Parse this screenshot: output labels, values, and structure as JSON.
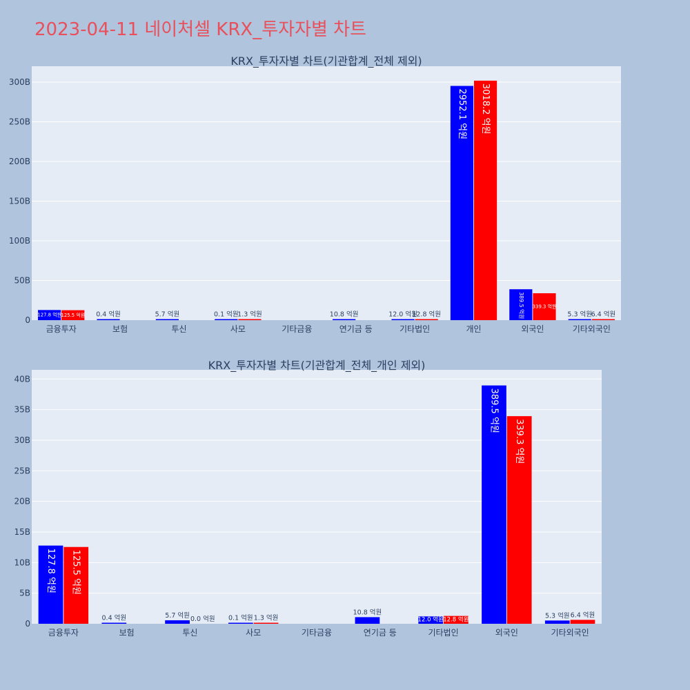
{
  "page": {
    "title": "2023-04-11 네이처셀 KRX_투자자별 차트"
  },
  "chart_data": [
    {
      "type": "bar",
      "title": "KRX_투자자별 차트(기관합계_전체 제외)",
      "categories": [
        "금융투자",
        "보험",
        "투신",
        "사모",
        "기타금융",
        "연기금 등",
        "기타법인",
        "개인",
        "외국인",
        "기타외국인"
      ],
      "series": [
        {
          "color": "#0000ff",
          "values": [
            12.78,
            0.04,
            0.57,
            0.01,
            0,
            1.08,
            1.2,
            295.21,
            38.95,
            0.53
          ],
          "labels": [
            "127.8 억원",
            "0.4 억원",
            "5.7 억원",
            "0.1 억원",
            "",
            "10.8 억원",
            "12.0 억원",
            "2952.1 억원",
            "389.5 억원",
            "5.3 억원"
          ]
        },
        {
          "color": "#ff0000",
          "values": [
            12.55,
            0,
            0,
            0.13,
            0,
            0,
            1.28,
            301.82,
            33.93,
            0.64
          ],
          "labels": [
            "125.5 억원",
            "",
            "",
            "1.3 억원",
            "",
            "",
            "12.8 억원",
            "3018.2 억원",
            "339.3 억원",
            "6.4 억원"
          ]
        }
      ],
      "yunit": "B",
      "yticks": [
        0,
        50,
        100,
        150,
        200,
        250,
        300
      ],
      "ylim": [
        0,
        320
      ],
      "grid": true,
      "legend": "none"
    },
    {
      "type": "bar",
      "title": "KRX_투자자별 차트(기관합계_전체_개인 제외)",
      "categories": [
        "금융투자",
        "보험",
        "투신",
        "사모",
        "기타금융",
        "연기금 등",
        "기타법인",
        "외국인",
        "기타외국인"
      ],
      "series": [
        {
          "color": "#0000ff",
          "values": [
            12.78,
            0.04,
            0.57,
            0.01,
            0,
            1.08,
            1.2,
            38.95,
            0.53
          ],
          "labels": [
            "127.8 억원",
            "0.4 억원",
            "5.7 억원",
            "0.1 억원",
            "",
            "10.8 억원",
            "12.0 억원",
            "389.5 억원",
            "5.3 억원"
          ]
        },
        {
          "color": "#ff0000",
          "values": [
            12.55,
            0,
            0,
            0.13,
            0,
            0,
            1.28,
            33.93,
            0.64
          ],
          "labels": [
            "125.5 억원",
            "",
            "0.0 억원",
            "1.3 억원",
            "",
            "",
            "12.8 억원",
            "339.3 억원",
            "6.4 억원"
          ]
        }
      ],
      "yunit": "B",
      "yticks": [
        0,
        5,
        10,
        15,
        20,
        25,
        30,
        35,
        40
      ],
      "ylim": [
        0,
        41.5
      ],
      "grid": true,
      "legend": "none"
    }
  ]
}
